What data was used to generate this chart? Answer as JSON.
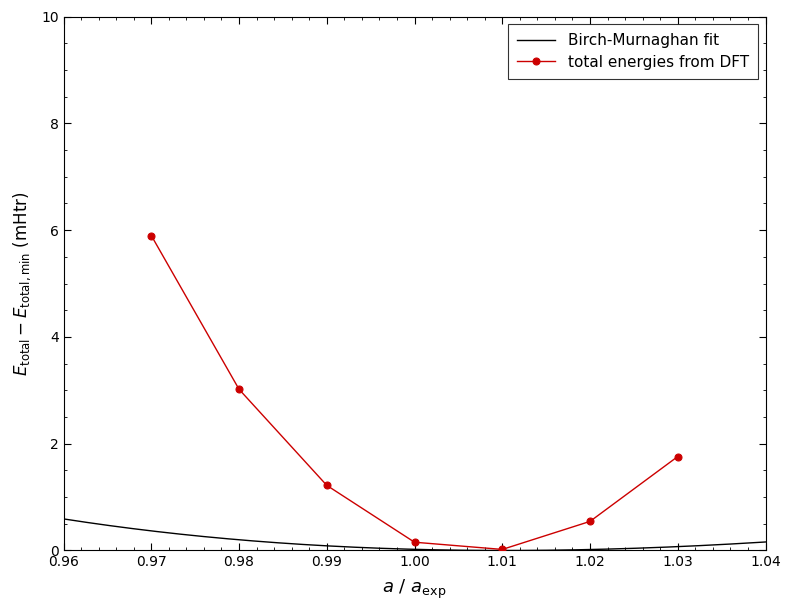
{
  "dft_x": [
    0.97,
    0.98,
    0.99,
    1.0,
    1.01,
    1.02,
    1.03
  ],
  "dft_y": [
    5.9,
    3.02,
    1.22,
    0.155,
    0.02,
    0.545,
    1.76
  ],
  "xlim": [
    0.96,
    1.04
  ],
  "ylim": [
    0,
    10
  ],
  "yticks": [
    0,
    2,
    4,
    6,
    8,
    10
  ],
  "xticks": [
    0.96,
    0.97,
    0.98,
    0.99,
    1.0,
    1.01,
    1.02,
    1.03,
    1.04
  ],
  "xlabel": "$a \\ /\\ a_\\mathrm{exp}$",
  "ylabel": "$E_\\mathrm{total} - E_\\mathrm{total,min}$ (mHtr)",
  "legend_bm": "Birch-Murnaghan fit",
  "legend_dft": "total energies from DFT",
  "line_color_bm": "#000000",
  "line_color_dft": "#cc0000",
  "marker_color_dft": "#cc0000",
  "bg_color": "#ffffff",
  "figsize": [
    7.92,
    6.12
  ],
  "dpi": 100
}
